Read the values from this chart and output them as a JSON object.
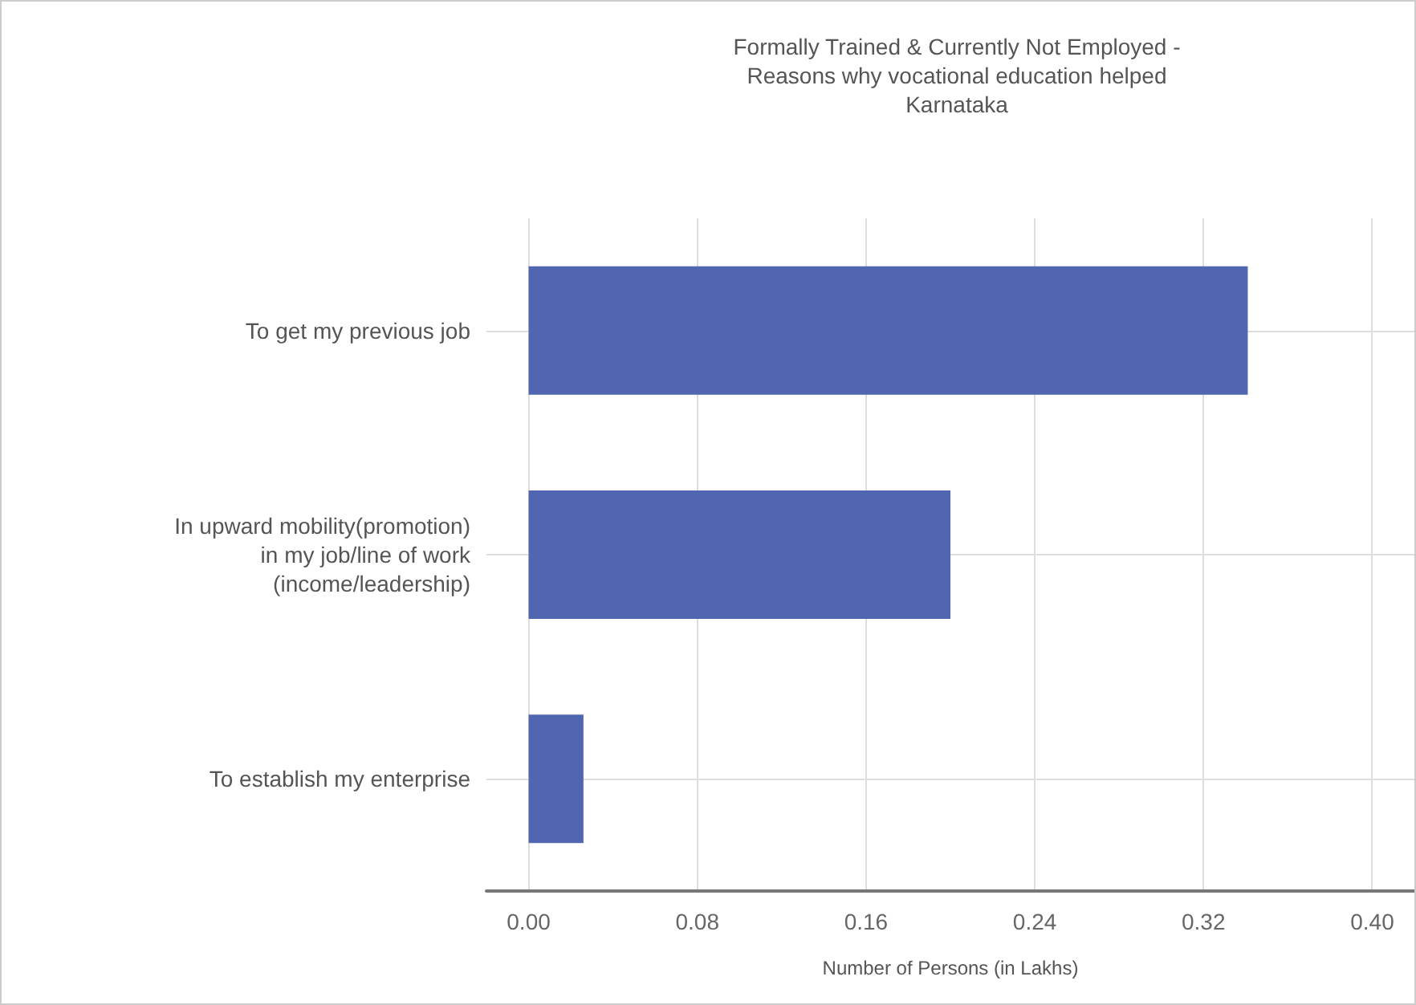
{
  "chart_data": {
    "type": "bar",
    "orientation": "horizontal",
    "title": "Formally Trained & Currently Not Employed -\nReasons why vocational education helped\nKarnataka",
    "xlabel": "Number of Persons (in Lakhs)",
    "categories": [
      "To get my previous job",
      "In upward mobility(promotion)\nin my job/line of work\n(income/leadership)",
      "To establish my enterprise"
    ],
    "values": [
      0.341,
      0.2,
      0.026
    ],
    "color": "#5066b0",
    "xlim": [
      -0.02,
      0.42
    ],
    "xticks": [
      {
        "value": 0,
        "label": "0.00"
      },
      {
        "value": 0.08,
        "label": "0.08"
      },
      {
        "value": 0.16,
        "label": "0.16"
      },
      {
        "value": 0.24,
        "label": "0.24"
      },
      {
        "value": 0.32,
        "label": "0.32"
      },
      {
        "value": 0.4,
        "label": "0.40"
      }
    ],
    "grid": true
  }
}
